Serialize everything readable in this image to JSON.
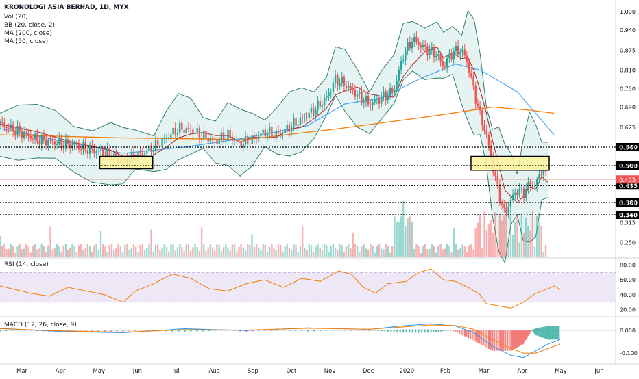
{
  "header": {
    "title": "KRONOLOGI ASIA BERHAD, 1D, MYX",
    "indicators": [
      "Vol (20)",
      "BB (20, close, 2)",
      "MA (200, close)",
      "MA (50, close)"
    ]
  },
  "rsi_label": "RSI (14, close)",
  "macd_label": "MACD (12, 26, close, 9)",
  "colors": {
    "up": "#26a69a",
    "down": "#ef5350",
    "bb": "#2e7d6b",
    "bb_fill": "#e0f2f1",
    "ma200": "#f57c00",
    "ma50": "#42a5f5",
    "ma20": "#b71c1c",
    "rsi": "#f57c00",
    "rsi_band": "#ede7f6",
    "macd": "#2196f3",
    "signal": "#f57c00",
    "box": "#fff59d"
  },
  "chart_data": {
    "type": "candlestick",
    "x_ticks": [
      "Mar",
      "Apr",
      "May",
      "Jun",
      "Jul",
      "Aug",
      "Sep",
      "Oct",
      "Nov",
      "Dec",
      "2020",
      "Feb",
      "Mar",
      "Apr",
      "May",
      "Jun"
    ],
    "price_axis": [
      "1.000",
      "0.940",
      "0.875",
      "0.810",
      "0.750",
      "0.690",
      "0.625",
      "0.560",
      "0.500",
      "0.435",
      "0.380",
      "0.315",
      "0.250"
    ],
    "price_range": [
      0.22,
      1.02
    ],
    "levels": [
      {
        "label": "0.560",
        "value": 0.56
      },
      {
        "label": "0.500",
        "value": 0.5
      },
      {
        "label": "0.435",
        "value": 0.435
      },
      {
        "label": "0.380",
        "value": 0.38
      },
      {
        "label": "0.340",
        "value": 0.34
      }
    ],
    "last_price": {
      "label": "0.455",
      "value": 0.455
    },
    "highlight_boxes": [
      {
        "x_start": 0.162,
        "x_end": 0.248,
        "low": 0.49,
        "high": 0.53
      },
      {
        "x_start": 0.765,
        "x_end": 0.892,
        "low": 0.485,
        "high": 0.53
      }
    ],
    "close_path": [
      [
        0.0,
        0.635
      ],
      [
        0.03,
        0.61
      ],
      [
        0.06,
        0.585
      ],
      [
        0.09,
        0.575
      ],
      [
        0.12,
        0.565
      ],
      [
        0.15,
        0.55
      ],
      [
        0.18,
        0.535
      ],
      [
        0.2,
        0.51
      ],
      [
        0.22,
        0.53
      ],
      [
        0.25,
        0.56
      ],
      [
        0.27,
        0.59
      ],
      [
        0.29,
        0.62
      ],
      [
        0.31,
        0.615
      ],
      [
        0.33,
        0.595
      ],
      [
        0.35,
        0.58
      ],
      [
        0.37,
        0.6
      ],
      [
        0.39,
        0.57
      ],
      [
        0.41,
        0.585
      ],
      [
        0.43,
        0.61
      ],
      [
        0.45,
        0.6
      ],
      [
        0.47,
        0.625
      ],
      [
        0.49,
        0.65
      ],
      [
        0.51,
        0.68
      ],
      [
        0.53,
        0.72
      ],
      [
        0.545,
        0.78
      ],
      [
        0.56,
        0.765
      ],
      [
        0.58,
        0.73
      ],
      [
        0.6,
        0.7
      ],
      [
        0.62,
        0.72
      ],
      [
        0.64,
        0.745
      ],
      [
        0.655,
        0.86
      ],
      [
        0.67,
        0.91
      ],
      [
        0.69,
        0.88
      ],
      [
        0.71,
        0.86
      ],
      [
        0.72,
        0.82
      ],
      [
        0.735,
        0.87
      ],
      [
        0.75,
        0.875
      ],
      [
        0.76,
        0.83
      ],
      [
        0.77,
        0.74
      ],
      [
        0.78,
        0.66
      ],
      [
        0.79,
        0.6
      ],
      [
        0.8,
        0.5
      ],
      [
        0.81,
        0.41
      ],
      [
        0.82,
        0.34
      ],
      [
        0.83,
        0.39
      ],
      [
        0.84,
        0.42
      ],
      [
        0.85,
        0.41
      ],
      [
        0.86,
        0.44
      ],
      [
        0.87,
        0.435
      ],
      [
        0.88,
        0.49
      ],
      [
        0.89,
        0.455
      ]
    ],
    "rsi_axis": [
      "80.00",
      "60.00",
      "40.00",
      "20.00"
    ],
    "rsi_path": [
      [
        0.0,
        52
      ],
      [
        0.05,
        42
      ],
      [
        0.08,
        38
      ],
      [
        0.11,
        50
      ],
      [
        0.14,
        45
      ],
      [
        0.17,
        40
      ],
      [
        0.2,
        30
      ],
      [
        0.22,
        45
      ],
      [
        0.25,
        55
      ],
      [
        0.28,
        68
      ],
      [
        0.31,
        62
      ],
      [
        0.34,
        48
      ],
      [
        0.37,
        45
      ],
      [
        0.4,
        55
      ],
      [
        0.43,
        60
      ],
      [
        0.46,
        50
      ],
      [
        0.49,
        62
      ],
      [
        0.52,
        58
      ],
      [
        0.55,
        72
      ],
      [
        0.57,
        68
      ],
      [
        0.59,
        50
      ],
      [
        0.61,
        42
      ],
      [
        0.63,
        55
      ],
      [
        0.66,
        58
      ],
      [
        0.68,
        70
      ],
      [
        0.7,
        75
      ],
      [
        0.72,
        60
      ],
      [
        0.74,
        58
      ],
      [
        0.76,
        50
      ],
      [
        0.78,
        40
      ],
      [
        0.79,
        28
      ],
      [
        0.81,
        25
      ],
      [
        0.83,
        22
      ],
      [
        0.85,
        30
      ],
      [
        0.87,
        42
      ],
      [
        0.89,
        48
      ],
      [
        0.9,
        52
      ],
      [
        0.91,
        47
      ]
    ],
    "macd_axis": [
      "0.000",
      "-0.100"
    ],
    "macd_path": [
      [
        0.0,
        0.01
      ],
      [
        0.1,
        -0.005
      ],
      [
        0.2,
        -0.01
      ],
      [
        0.3,
        0.008
      ],
      [
        0.4,
        0.0
      ],
      [
        0.5,
        0.012
      ],
      [
        0.6,
        0.005
      ],
      [
        0.65,
        0.02
      ],
      [
        0.7,
        0.03
      ],
      [
        0.74,
        0.02
      ],
      [
        0.77,
        -0.01
      ],
      [
        0.8,
        -0.07
      ],
      [
        0.83,
        -0.11
      ],
      [
        0.85,
        -0.12
      ],
      [
        0.87,
        -0.09
      ],
      [
        0.89,
        -0.06
      ],
      [
        0.91,
        -0.04
      ]
    ],
    "signal_path": [
      [
        0.0,
        0.008
      ],
      [
        0.1,
        -0.002
      ],
      [
        0.2,
        -0.008
      ],
      [
        0.3,
        0.004
      ],
      [
        0.4,
        0.002
      ],
      [
        0.5,
        0.01
      ],
      [
        0.6,
        0.006
      ],
      [
        0.65,
        0.015
      ],
      [
        0.7,
        0.025
      ],
      [
        0.74,
        0.022
      ],
      [
        0.77,
        0.005
      ],
      [
        0.8,
        -0.04
      ],
      [
        0.83,
        -0.08
      ],
      [
        0.85,
        -0.1
      ],
      [
        0.87,
        -0.1
      ],
      [
        0.89,
        -0.08
      ],
      [
        0.91,
        -0.06
      ]
    ]
  }
}
